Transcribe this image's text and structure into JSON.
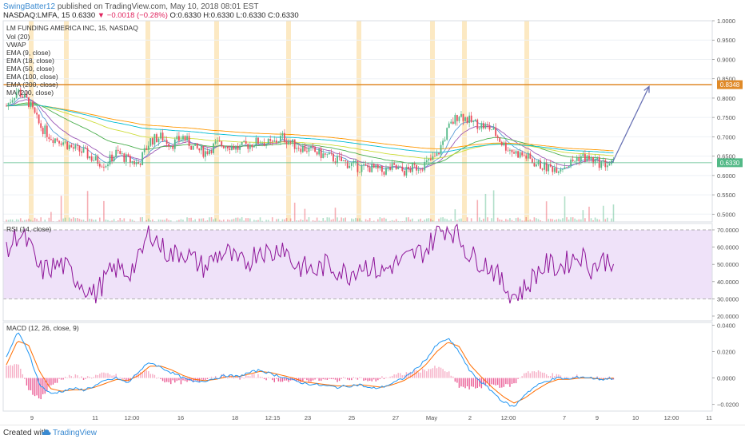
{
  "header": {
    "author": "SwingBatter12",
    "published": "published on TradingView.com, May 10, 2018 08:01 EST",
    "symbol_line": "NASDAQ:LMFA, 15",
    "price": "0.6330",
    "change": "▼ −0.0018 (−0.28%)",
    "ohlc": "O:0.6330 H:0.6330 L:0.6330 C:0.6330"
  },
  "footer": {
    "created_with": "Created with",
    "brand": "TradingView"
  },
  "colors": {
    "up": "#53b987",
    "down": "#eb4d5c",
    "rsi_line": "#8e1599",
    "rsi_band": "#e9d6f7",
    "macd_line": "#2196f3",
    "signal_line": "#ff6d00",
    "highlight": "#fbe3b4",
    "resistance": "#e08a28",
    "arrow": "#6a73b5",
    "ema1": "#5a9dd6",
    "ema2": "#9b59b6",
    "ema3": "#4caf50",
    "ema4": "#cddc39",
    "ema5": "#ff9800",
    "ma": "#00bcd4"
  },
  "price_panel": {
    "legend": [
      "LM FUNDING AMERICA INC, 15, NASDAQ",
      "Vol (20)",
      "VWAP",
      "EMA (9, close)",
      "EMA (18, close)",
      "EMA (50, close)",
      "EMA (100, close)",
      "EMA (200, close)",
      "MA (200, close)"
    ],
    "axis_ticks": [
      "1.0000",
      "0.9500",
      "0.9000",
      "0.8500",
      "0.8000",
      "0.7500",
      "0.7000",
      "0.6500",
      "0.6000",
      "0.5500",
      "0.5000"
    ],
    "resistance_label": "0.8348",
    "last_label": "0.6330"
  },
  "rsi_panel": {
    "legend": "RSI (14, close)",
    "axis_ticks": [
      "70.0000",
      "60.0000",
      "50.0000",
      "40.0000",
      "30.0000",
      "20.0000"
    ]
  },
  "macd_panel": {
    "legend": "MACD (12, 26, close, 9)",
    "axis_ticks": [
      "0.0400",
      "0.0200",
      "0.0000",
      "−0.0200"
    ]
  },
  "time_axis": [
    "9",
    "11",
    "12:00",
    "16",
    "18",
    "12:15",
    "23",
    "25",
    "27",
    "May",
    "2",
    "12:00",
    "7",
    "9",
    "10",
    "12:00",
    "11"
  ],
  "chart_data": {
    "type": "candlestick",
    "symbol": "NASDAQ:LMFA",
    "interval": "15",
    "price_ylim": [
      0.48,
      1.0
    ],
    "resistance": 0.8348,
    "last_price": 0.633,
    "projection": {
      "from": 0.633,
      "to": 0.83
    },
    "price_path": [
      0.78,
      0.82,
      0.79,
      0.73,
      0.7,
      0.69,
      0.67,
      0.66,
      0.64,
      0.63,
      0.66,
      0.64,
      0.63,
      0.69,
      0.7,
      0.68,
      0.7,
      0.67,
      0.66,
      0.68,
      0.68,
      0.67,
      0.68,
      0.69,
      0.68,
      0.7,
      0.68,
      0.67,
      0.66,
      0.65,
      0.64,
      0.63,
      0.62,
      0.62,
      0.61,
      0.62,
      0.61,
      0.62,
      0.63,
      0.65,
      0.72,
      0.76,
      0.74,
      0.73,
      0.72,
      0.68,
      0.66,
      0.65,
      0.63,
      0.62,
      0.62,
      0.63,
      0.65,
      0.64,
      0.63,
      0.63
    ],
    "rsi_ylim": [
      20,
      70
    ],
    "rsi_band": [
      30,
      70
    ],
    "rsi_path": [
      56,
      68,
      62,
      46,
      48,
      50,
      44,
      38,
      32,
      42,
      48,
      45,
      52,
      70,
      60,
      55,
      58,
      52,
      48,
      55,
      57,
      50,
      52,
      60,
      55,
      62,
      50,
      48,
      46,
      50,
      47,
      44,
      50,
      49,
      45,
      50,
      52,
      56,
      58,
      68,
      72,
      66,
      55,
      52,
      48,
      38,
      32,
      36,
      45,
      50,
      48,
      52,
      56,
      48,
      52,
      53
    ],
    "macd_ylim": [
      -0.025,
      0.042
    ],
    "macd_path": [
      0.015,
      0.035,
      0.02,
      -0.005,
      -0.012,
      -0.01,
      -0.008,
      -0.009,
      -0.006,
      -0.002,
      0.0,
      -0.004,
      0.005,
      0.012,
      0.008,
      0.004,
      0.0,
      -0.003,
      -0.002,
      0.0,
      0.002,
      0.001,
      0.004,
      0.006,
      0.003,
      0.001,
      -0.002,
      -0.004,
      -0.005,
      -0.006,
      -0.007,
      -0.006,
      -0.005,
      -0.008,
      -0.007,
      -0.004,
      0.0,
      0.006,
      0.014,
      0.025,
      0.03,
      0.02,
      0.005,
      -0.003,
      -0.01,
      -0.018,
      -0.022,
      -0.012,
      -0.006,
      -0.002,
      0.0,
      -0.001,
      0.001,
      0.0,
      -0.001,
      0.0
    ],
    "signal_path": [
      0.01,
      0.028,
      0.025,
      0.005,
      -0.008,
      -0.01,
      -0.009,
      -0.009,
      -0.007,
      -0.004,
      -0.001,
      -0.002,
      0.002,
      0.009,
      0.009,
      0.006,
      0.002,
      -0.001,
      -0.002,
      -0.001,
      0.001,
      0.001,
      0.003,
      0.005,
      0.004,
      0.002,
      0.0,
      -0.003,
      -0.004,
      -0.005,
      -0.006,
      -0.006,
      -0.005,
      -0.006,
      -0.007,
      -0.005,
      -0.002,
      0.003,
      0.01,
      0.02,
      0.027,
      0.024,
      0.01,
      0.001,
      -0.007,
      -0.014,
      -0.019,
      -0.015,
      -0.009,
      -0.004,
      -0.001,
      -0.001,
      0.0,
      0.0,
      -0.001,
      0.0
    ]
  }
}
